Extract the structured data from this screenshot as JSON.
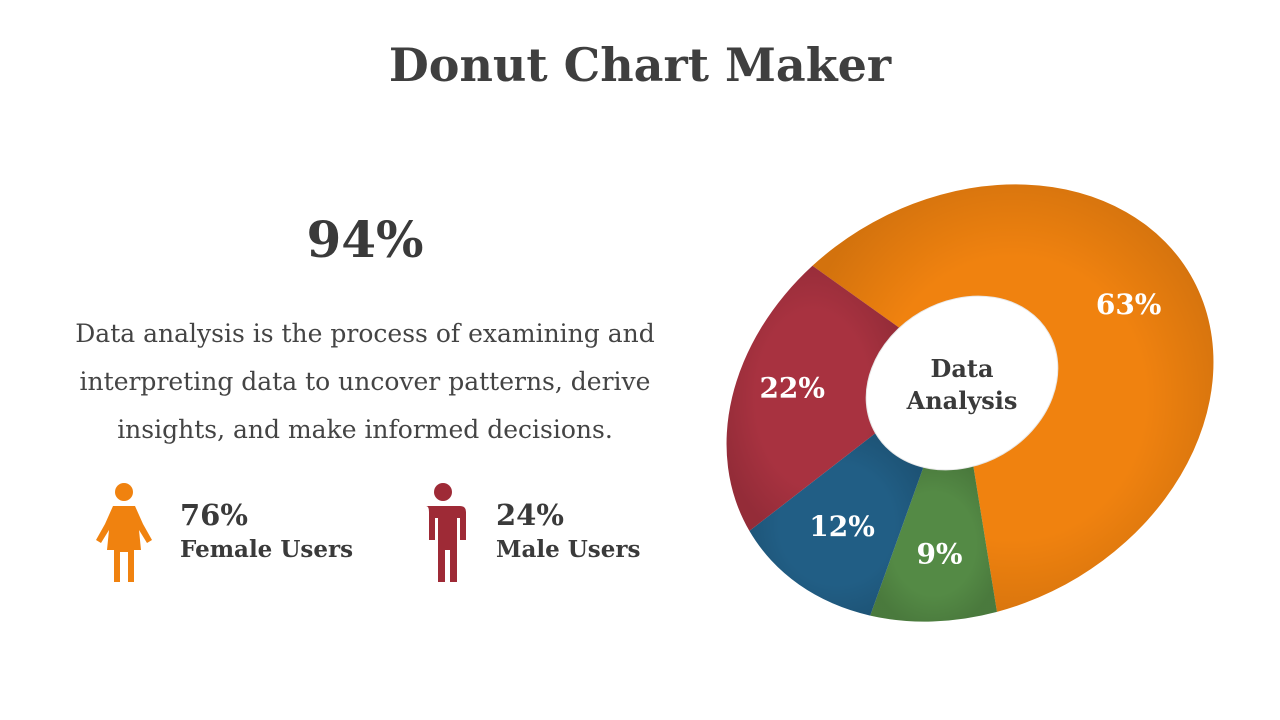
{
  "title": "Donut Chart Maker",
  "headline_stat": "94%",
  "description": "Data analysis is the process of examining and interpreting data to uncover patterns, derive insights, and make informed decisions.",
  "user_stats": [
    {
      "value": "76%",
      "label": "Female Users",
      "icon": "female-user-icon",
      "color": "#F0820F"
    },
    {
      "value": "24%",
      "label": "Male Users",
      "icon": "male-user-icon",
      "color": "#9E2A36"
    }
  ],
  "chart_data": {
    "type": "pie",
    "style": "donut",
    "center_label": [
      "Data",
      "Analysis"
    ],
    "slices": [
      {
        "value": 63,
        "label": "63%",
        "color": "#F0820F"
      },
      {
        "value": 9,
        "label": "9%",
        "color": "#548A45"
      },
      {
        "value": 12,
        "label": "12%",
        "color": "#215E85"
      },
      {
        "value": 22,
        "label": "22%",
        "color": "#A83240"
      }
    ]
  }
}
